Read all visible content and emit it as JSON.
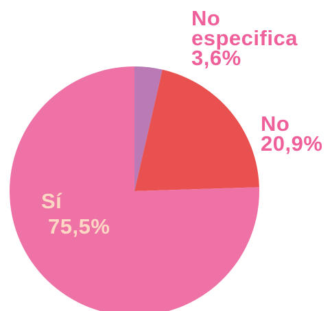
{
  "chart_data": {
    "type": "pie",
    "categories": [
      "No especifica",
      "No",
      "Sí"
    ],
    "values": [
      3.6,
      20.9,
      75.5
    ],
    "value_labels": [
      "3,6%",
      "20,9%",
      "75,5%"
    ],
    "colors": [
      "#b97ab5",
      "#e8514f",
      "#ef72a6"
    ],
    "start_angle": 0,
    "direction": "clockwise"
  }
}
